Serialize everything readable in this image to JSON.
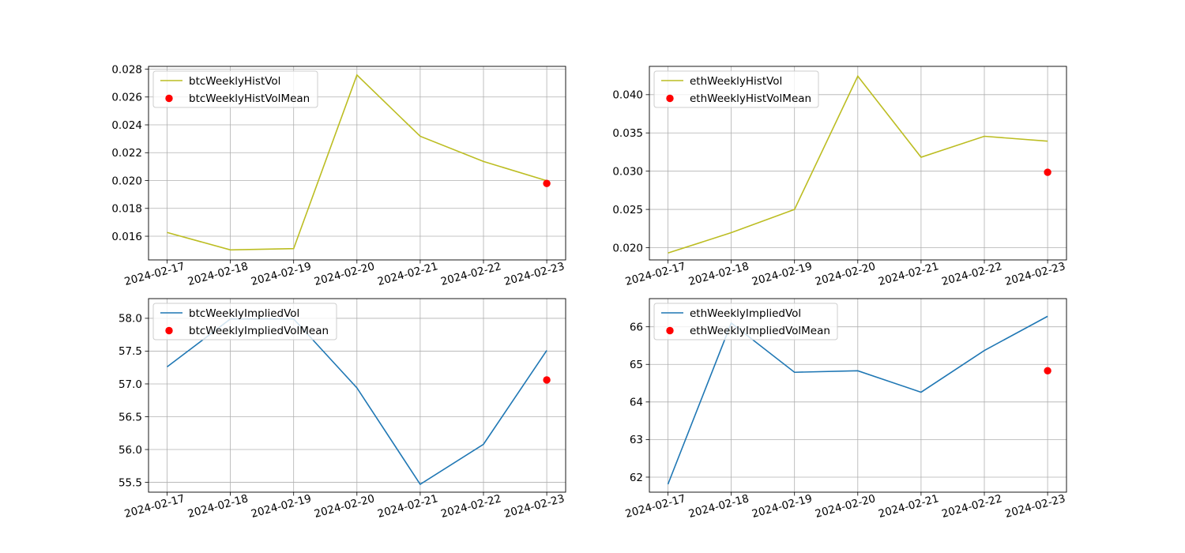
{
  "chart_data": [
    {
      "type": "line",
      "x": [
        "2024-02-17",
        "2024-02-18",
        "2024-02-19",
        "2024-02-20",
        "2024-02-21",
        "2024-02-22",
        "2024-02-23"
      ],
      "series": [
        {
          "name": "btcWeeklyHistVol",
          "type": "line",
          "color": "#bcbd22",
          "values": [
            0.01627,
            0.01502,
            0.01511,
            0.02758,
            0.02318,
            0.02137,
            0.01999
          ]
        }
      ],
      "mean_point": {
        "name": "btcWeeklyHistVolMean",
        "x": "2024-02-23",
        "y": 0.01979,
        "color": "#ff0000"
      },
      "ylim": [
        0.0143,
        0.0282
      ],
      "yticks": [
        0.016,
        0.018,
        0.02,
        0.022,
        0.024,
        0.026,
        0.028
      ],
      "ytick_labels": [
        "0.016",
        "0.018",
        "0.020",
        "0.022",
        "0.024",
        "0.026",
        "0.028"
      ],
      "grid": true,
      "legend": "upper-left"
    },
    {
      "type": "line",
      "x": [
        "2024-02-17",
        "2024-02-18",
        "2024-02-19",
        "2024-02-20",
        "2024-02-21",
        "2024-02-22",
        "2024-02-23"
      ],
      "series": [
        {
          "name": "ethWeeklyHistVol",
          "type": "line",
          "color": "#bcbd22",
          "values": [
            0.0193,
            0.02196,
            0.025,
            0.04242,
            0.03182,
            0.03456,
            0.03392
          ]
        }
      ],
      "mean_point": {
        "name": "ethWeeklyHistVolMean",
        "x": "2024-02-23",
        "y": 0.02986,
        "color": "#ff0000"
      },
      "ylim": [
        0.0184,
        0.0437
      ],
      "yticks": [
        0.02,
        0.025,
        0.03,
        0.035,
        0.04
      ],
      "ytick_labels": [
        "0.020",
        "0.025",
        "0.030",
        "0.035",
        "0.040"
      ],
      "grid": true,
      "legend": "upper-left"
    },
    {
      "type": "line",
      "x": [
        "2024-02-17",
        "2024-02-18",
        "2024-02-19",
        "2024-02-20",
        "2024-02-21",
        "2024-02-22",
        "2024-02-23"
      ],
      "series": [
        {
          "name": "btcWeeklyImpliedVol",
          "type": "line",
          "color": "#1f77b4",
          "values": [
            57.26,
            57.99,
            57.99,
            56.94,
            55.47,
            56.08,
            57.51
          ]
        }
      ],
      "mean_point": {
        "name": "btcWeeklyImpliedVolMean",
        "x": "2024-02-23",
        "y": 57.06,
        "color": "#ff0000"
      },
      "ylim": [
        55.35,
        58.3
      ],
      "yticks": [
        55.5,
        56.0,
        56.5,
        57.0,
        57.5,
        58.0
      ],
      "ytick_labels": [
        "55.5",
        "56.0",
        "56.5",
        "57.0",
        "57.5",
        "58.0"
      ],
      "grid": true,
      "legend": "upper-left"
    },
    {
      "type": "line",
      "x": [
        "2024-02-17",
        "2024-02-18",
        "2024-02-19",
        "2024-02-20",
        "2024-02-21",
        "2024-02-22",
        "2024-02-23"
      ],
      "series": [
        {
          "name": "ethWeeklyImpliedVol",
          "type": "line",
          "color": "#1f77b4",
          "values": [
            61.81,
            66.1,
            64.79,
            64.83,
            64.26,
            65.37,
            66.28
          ]
        }
      ],
      "mean_point": {
        "name": "ethWeeklyImpliedVolMean",
        "x": "2024-02-23",
        "y": 64.83,
        "color": "#ff0000"
      },
      "ylim": [
        61.6,
        66.75
      ],
      "yticks": [
        62,
        63,
        64,
        65,
        66
      ],
      "ytick_labels": [
        "62",
        "63",
        "64",
        "65",
        "66"
      ],
      "grid": true,
      "legend": "upper-left"
    }
  ]
}
